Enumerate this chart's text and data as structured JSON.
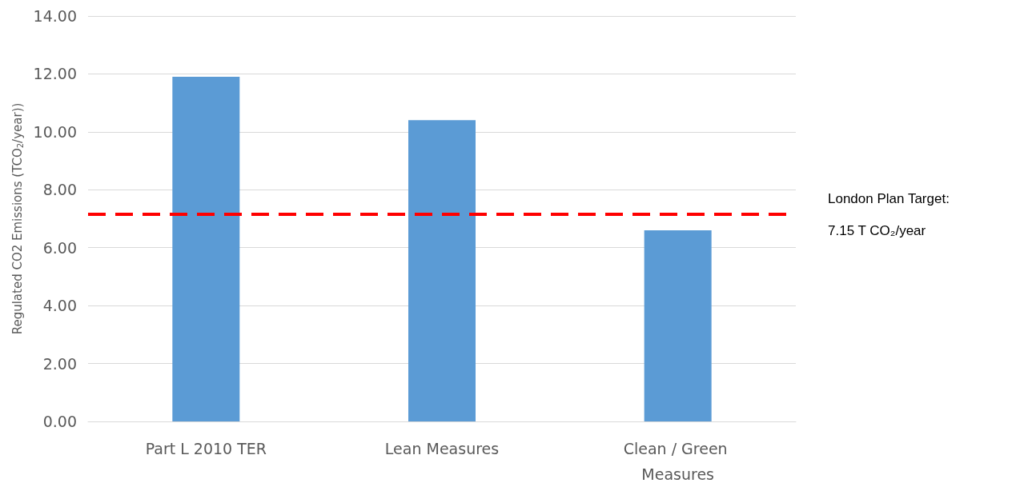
{
  "chart_data": {
    "type": "bar",
    "categories": [
      "Part L 2010 TER",
      "Lean Measures",
      "Clean / Green Measures"
    ],
    "values": [
      11.9,
      10.4,
      6.6
    ],
    "color": "#5b9bd5",
    "ylabel": "Regulated CO2 Emissions (TCO$_{2}$/year))",
    "ylim": [
      0,
      14
    ],
    "yticks": [
      {
        "value": 0,
        "label": "0.00"
      },
      {
        "value": 2,
        "label": "2.00"
      },
      {
        "value": 4,
        "label": "4.00"
      },
      {
        "value": 6,
        "label": "6.00"
      },
      {
        "value": 8,
        "label": "8.00"
      },
      {
        "value": 10,
        "label": "10.00"
      },
      {
        "value": 12,
        "label": "12.00"
      },
      {
        "value": 14,
        "label": "14.00"
      }
    ],
    "grid": "y",
    "ref_lines": [
      {
        "axis": "y",
        "value": 7.15,
        "label": "London Plan Target:\n7.15 T CO₂/year",
        "color": "#ff0000",
        "line_style": "dashed"
      }
    ]
  }
}
